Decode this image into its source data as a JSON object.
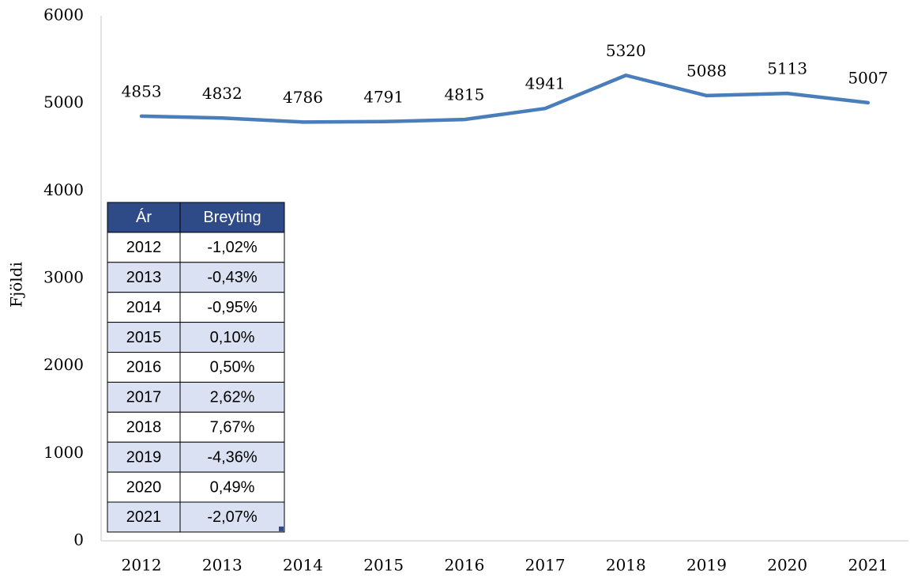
{
  "chart_data": {
    "type": "line",
    "y_label": "Fjöldi",
    "categories": [
      "2012",
      "2013",
      "2014",
      "2015",
      "2016",
      "2017",
      "2018",
      "2019",
      "2020",
      "2021"
    ],
    "series": [
      {
        "name": null,
        "color": "#4a7ebb",
        "values": [
          4853,
          4832,
          4786,
          4791,
          4815,
          4941,
          5320,
          5088,
          5113,
          5007
        ]
      }
    ],
    "ylim": [
      0,
      6000
    ],
    "yticks": [
      0,
      1000,
      2000,
      3000,
      4000,
      5000,
      6000
    ],
    "grid": false
  },
  "table": {
    "header": [
      "Ár",
      "Breyting"
    ],
    "rows": [
      [
        "2012",
        "-1,02%"
      ],
      [
        "2013",
        "-0,43%"
      ],
      [
        "2014",
        "-0,95%"
      ],
      [
        "2015",
        "0,10%"
      ],
      [
        "2016",
        "0,50%"
      ],
      [
        "2017",
        "2,62%"
      ],
      [
        "2018",
        "7,67%"
      ],
      [
        "2019",
        "-4,36%"
      ],
      [
        "2020",
        "0,49%"
      ],
      [
        "2021",
        "-2,07%"
      ]
    ]
  }
}
